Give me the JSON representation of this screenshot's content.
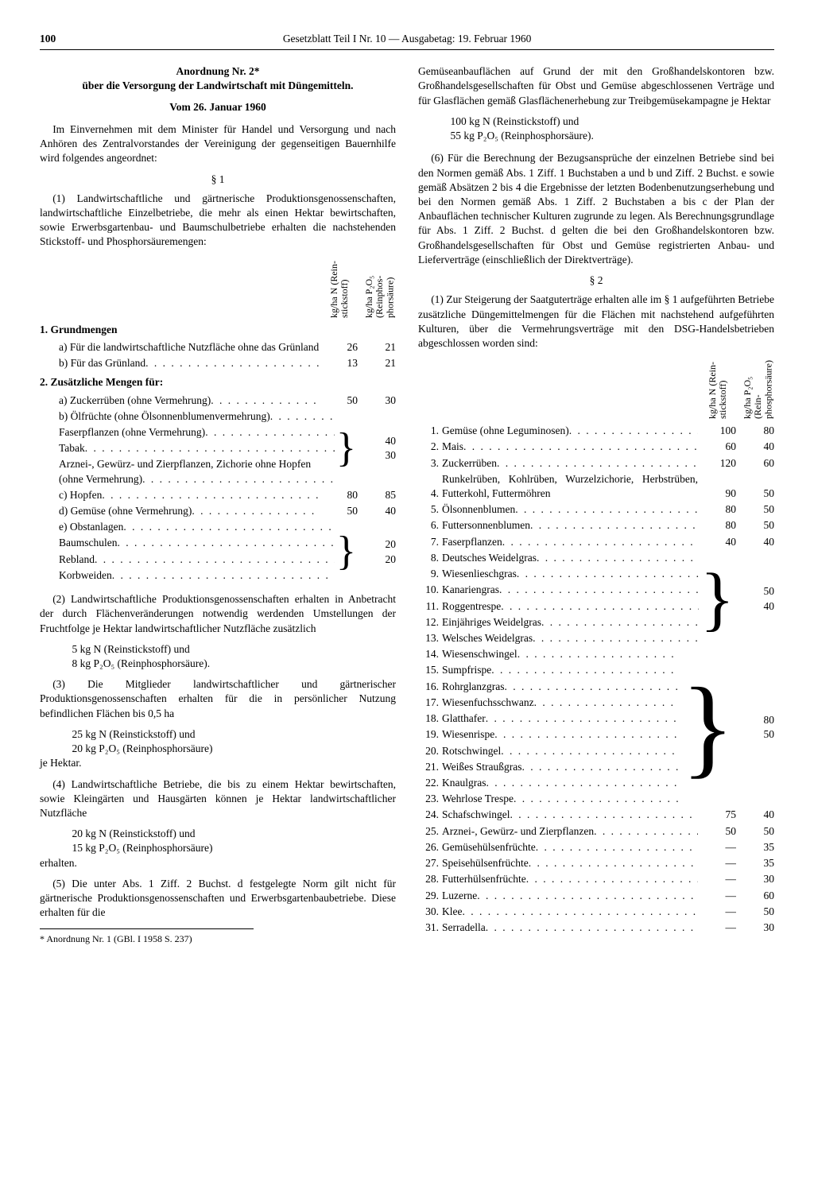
{
  "header": {
    "page": "100",
    "title": "Gesetzblatt Teil I Nr. 10 — Ausgabetag: 19. Februar 1960"
  },
  "left": {
    "ord_title1": "Anordnung Nr. 2*",
    "ord_title2": "über die Versorgung der Landwirtschaft mit Düngemitteln.",
    "date": "Vom 26. Januar 1960",
    "intro": "Im Einvernehmen mit dem Minister für Handel und Versorgung und nach Anhören des Zentralvorstandes der Vereinigung der gegenseitigen Bauernhilfe wird folgendes angeordnet:",
    "s1": "§ 1",
    "p1": "(1) Landwirtschaftliche und gärtnerische Produktionsgenossenschaften, landwirtschaftliche Einzelbetriebe, die mehr als einen Hektar bewirtschaften, sowie Erwerbsgartenbau- und Baumschulbetriebe erhalten die nachstehenden Stickstoff- und Phosphorsäuremengen:",
    "col_head1": "kg/ha N\n(Rein-\nstickstoff)",
    "col_head2": "kg/ha P₂O₅\n(Reinphos-\nphorsäure)",
    "sec1_h": "1. Grundmengen",
    "sec1_rows": [
      {
        "label": "a) Für die landwirtschaftliche Nutzfläche ohne das Grünland",
        "v1": "26",
        "v2": "21"
      },
      {
        "label": "b) Für das Grünland",
        "v1": "13",
        "v2": "21"
      }
    ],
    "sec2_h": "2. Zusätzliche Mengen für:",
    "sec2_a": {
      "label": "a) Zuckerrüben (ohne Vermehrung)",
      "v1": "50",
      "v2": "30"
    },
    "sec2_b_items": [
      "b) Ölfrüchte (ohne Ölsonnenblumenvermehrung)",
      "Faserpflanzen (ohne Vermehrung)",
      "Tabak",
      "Arznei-, Gewürz- und Zierpflanzen, Zichorie ohne Hopfen (ohne Vermehrung)"
    ],
    "sec2_b_v1": "40",
    "sec2_b_v2": "30",
    "sec2_c": {
      "label": "c) Hopfen",
      "v1": "80",
      "v2": "85"
    },
    "sec2_d": {
      "label": "d) Gemüse (ohne Vermehrung)",
      "v1": "50",
      "v2": "40"
    },
    "sec2_e_items": [
      "e) Obstanlagen",
      "Baumschulen",
      "Rebland",
      "Korbweiden"
    ],
    "sec2_e_v1": "20",
    "sec2_e_v2": "20",
    "p2": "(2) Landwirtschaftliche Produktionsgenossenschaften erhalten in Anbetracht der durch Flächenveränderungen notwendig werdenden Umstellungen der Fruchtfolge je Hektar landwirtschaftlicher Nutzfläche zusätzlich",
    "p2a": "5 kg N (Reinstickstoff) und",
    "p2b": "8 kg P₂O₅ (Reinphosphorsäure).",
    "p3": "(3) Die Mitglieder landwirtschaftlicher und gärtnerischer Produktionsgenossenschaften erhalten für die in persönlicher Nutzung befindlichen Flächen bis 0,5 ha",
    "p3a": "25 kg N (Reinstickstoff) und",
    "p3b": "20 kg P₂O₅ (Reinphosphorsäure)",
    "p3c": "je Hektar.",
    "p4": "(4) Landwirtschaftliche Betriebe, die bis zu einem Hektar bewirtschaften, sowie Kleingärten und Hausgärten können je Hektar landwirtschaftlicher Nutzfläche",
    "p4a": "20 kg N (Reinstickstoff) und",
    "p4b": "15 kg P₂O₅ (Reinphosphorsäure)",
    "p4c": "erhalten.",
    "p5": "(5) Die unter Abs. 1 Ziff. 2 Buchst. d festgelegte Norm gilt nicht für gärtnerische Produktionsgenossenschaften und Erwerbsgartenbaubetriebe. Diese erhalten für die",
    "footnote": "* Anordnung Nr. 1 (GBl. I 1958 S. 237)"
  },
  "right": {
    "p5cont": "Gemüseanbauflächen auf Grund der mit den Großhandelskontoren bzw. Großhandelsgesellschaften für Obst und Gemüse abgeschlossenen Verträge und für Glasflächen gemäß Glasflächenerhebung zur Treibgemüsekampagne je Hektar",
    "p5a": "100 kg N (Reinstickstoff) und",
    "p5b": "55 kg P₂O₅ (Reinphosphorsäure).",
    "p6": "(6) Für die Berechnung der Bezugsansprüche der einzelnen Betriebe sind bei den Normen gemäß Abs. 1 Ziff. 1 Buchstaben a und b und Ziff. 2 Buchst. e sowie gemäß Absätzen 2 bis 4 die Ergebnisse der letzten Bodenbenutzungserhebung und bei den Normen gemäß Abs. 1 Ziff. 2 Buchstaben a bis c der Plan der Anbauflächen technischer Kulturen zugrunde zu legen. Als Berechnungsgrundlage für Abs. 1 Ziff. 2 Buchst. d gelten die bei den Großhandelskontoren bzw. Großhandelsgesellschaften für Obst und Gemüse registrierten Anbau- und Lieferverträge (einschließlich der Direktverträge).",
    "s2": "§ 2",
    "p1": "(1) Zur Steigerung der Saatguterträge erhalten alle im § 1 aufgeführten Betriebe zusätzliche Düngemittelmengen für die Flächen mit nachstehend aufgeführten Kulturen, über die Vermehrungsverträge mit den DSG-Handelsbetrieben abgeschlossen worden sind:",
    "col_head1": "kg/ha N\n(Rein-\nstickstoff)",
    "col_head2": "kg/ha P₂O₅\n(Rein-\nphosphorsäure)",
    "rows_simple_top": [
      {
        "n": "1.",
        "label": "Gemüse (ohne Leguminosen)",
        "v1": "100",
        "v2": "80"
      },
      {
        "n": "2.",
        "label": "Mais",
        "v1": "60",
        "v2": "40"
      },
      {
        "n": "3.",
        "label": "Zuckerrüben",
        "v1": "120",
        "v2": "60"
      }
    ],
    "row4": {
      "n": "4.",
      "label": "Runkelrüben, Kohlrüben, Wurzelzichorie, Herbstrüben, Futterkohl, Futtermöhren",
      "v1": "90",
      "v2": "50"
    },
    "rows_simple_mid": [
      {
        "n": "5.",
        "label": "Ölsonnenblumen",
        "v1": "80",
        "v2": "50"
      },
      {
        "n": "6.",
        "label": "Futtersonnenblumen",
        "v1": "80",
        "v2": "50"
      },
      {
        "n": "7.",
        "label": "Faserpflanzen",
        "v1": "40",
        "v2": "40"
      }
    ],
    "group8_13": {
      "items": [
        {
          "n": "8.",
          "label": "Deutsches Weidelgras"
        },
        {
          "n": "9.",
          "label": "Wiesenlieschgras"
        },
        {
          "n": "10.",
          "label": "Kanariengras"
        },
        {
          "n": "11.",
          "label": "Roggentrespe"
        },
        {
          "n": "12.",
          "label": "Einjähriges Weidelgras"
        },
        {
          "n": "13.",
          "label": "Welsches Weidelgras"
        }
      ],
      "v1": "50",
      "v2": "40"
    },
    "group14_23": {
      "items": [
        {
          "n": "14.",
          "label": "Wiesenschwingel"
        },
        {
          "n": "15.",
          "label": "Sumpfrispe"
        },
        {
          "n": "16.",
          "label": "Rohrglanzgras"
        },
        {
          "n": "17.",
          "label": "Wiesenfuchsschwanz"
        },
        {
          "n": "18.",
          "label": "Glatthafer"
        },
        {
          "n": "19.",
          "label": "Wiesenrispe"
        },
        {
          "n": "20.",
          "label": "Rotschwingel"
        },
        {
          "n": "21.",
          "label": "Weißes Straußgras"
        },
        {
          "n": "22.",
          "label": "Knaulgras"
        },
        {
          "n": "23.",
          "label": "Wehrlose Trespe"
        }
      ],
      "v1": "80",
      "v2": "50"
    },
    "rows_simple_bot": [
      {
        "n": "24.",
        "label": "Schafschwingel",
        "v1": "75",
        "v2": "40"
      },
      {
        "n": "25.",
        "label": "Arznei-, Gewürz- und Zierpflanzen",
        "v1": "50",
        "v2": "50"
      },
      {
        "n": "26.",
        "label": "Gemüsehülsenfrüchte",
        "v1": "—",
        "v2": "35"
      },
      {
        "n": "27.",
        "label": "Speisehülsenfrüchte",
        "v1": "—",
        "v2": "35"
      },
      {
        "n": "28.",
        "label": "Futterhülsenfrüchte",
        "v1": "—",
        "v2": "30"
      },
      {
        "n": "29.",
        "label": "Luzerne",
        "v1": "—",
        "v2": "60"
      },
      {
        "n": "30.",
        "label": "Klee",
        "v1": "—",
        "v2": "50"
      },
      {
        "n": "31.",
        "label": "Serradella",
        "v1": "—",
        "v2": "30"
      }
    ]
  }
}
